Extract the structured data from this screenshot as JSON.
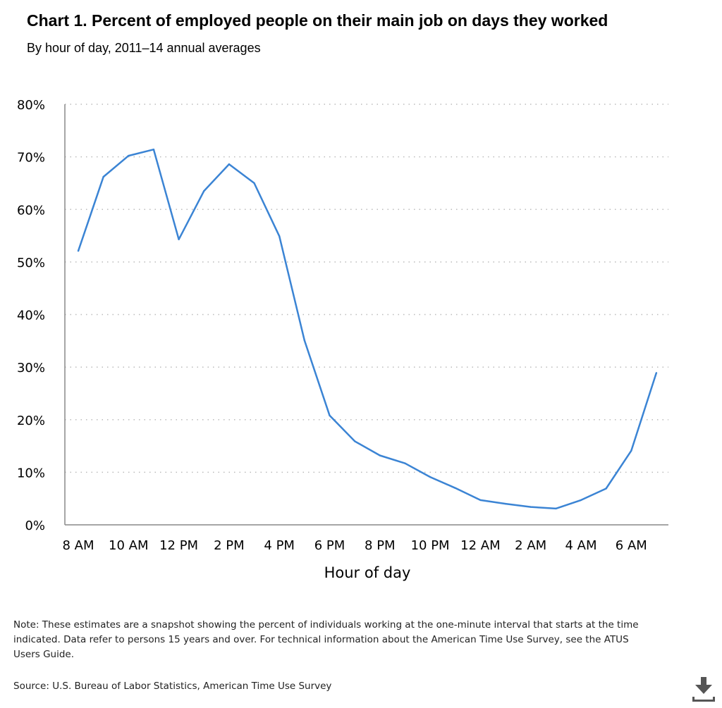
{
  "chart_data": {
    "type": "line",
    "title": "Chart 1. Percent of employed people on their main job on days they worked",
    "subtitle": "By hour of day, 2011–14 annual averages",
    "xlabel": "Hour of day",
    "ylabel": "",
    "ylim": [
      0,
      80
    ],
    "yticks": [
      "0%",
      "10%",
      "20%",
      "30%",
      "40%",
      "50%",
      "60%",
      "70%",
      "80%"
    ],
    "xticks": [
      "8 AM",
      "10 AM",
      "12 PM",
      "2 PM",
      "4 PM",
      "6 PM",
      "8 PM",
      "10 PM",
      "12 AM",
      "2 AM",
      "4 AM",
      "6 AM"
    ],
    "grid": true,
    "color": "#3b84d4",
    "x": [
      "8 AM",
      "9 AM",
      "10 AM",
      "11 AM",
      "12 PM",
      "1 PM",
      "2 PM",
      "3 PM",
      "4 PM",
      "5 PM",
      "6 PM",
      "7 PM",
      "8 PM",
      "9 PM",
      "10 PM",
      "11 PM",
      "12 AM",
      "1 AM",
      "2 AM",
      "3 AM",
      "4 AM",
      "5 AM",
      "6 AM",
      "7 AM"
    ],
    "values": [
      52.1,
      66.2,
      70.2,
      71.4,
      54.3,
      63.5,
      68.6,
      65.0,
      54.9,
      35.1,
      20.8,
      15.9,
      13.2,
      11.7,
      9.1,
      7.0,
      4.7,
      4.0,
      3.4,
      3.1,
      4.7,
      6.9,
      14.1,
      28.9
    ]
  },
  "note": "Note: These estimates are a snapshot showing the percent of individuals working at the one-minute interval that starts at the time indicated. Data refer to persons 15 years and over. For technical information about the American Time Use Survey, see the ATUS Users Guide.",
  "source": "Source: U.S. Bureau of Labor Statistics, American Time Use Survey",
  "download_icon": "download-icon"
}
